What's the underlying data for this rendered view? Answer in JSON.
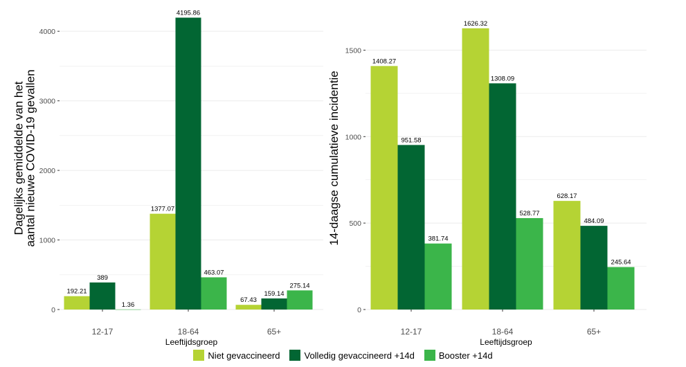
{
  "colors": {
    "series": [
      "#b5d334",
      "#026633",
      "#3bb54a"
    ],
    "grid": "#ebebeb",
    "text": "#000000",
    "tick_text": "#4d4d4d"
  },
  "legend": {
    "items": [
      "Niet gevaccineerd",
      "Volledig gevaccineerd +14d",
      "Booster +14d"
    ]
  },
  "chart_data": [
    {
      "type": "bar",
      "title": "",
      "xlabel": "Leeftijdsgroep",
      "ylabel": "Dagelijks gemiddelde van het aantal nieuwe COVID-19 gevallen",
      "ylabel_lines": [
        "Dagelijks gemiddelde van het",
        "aantal nieuwe COVID-19 gevallen"
      ],
      "categories": [
        "12-17",
        "18-64",
        "65+"
      ],
      "ylim": [
        0,
        4350
      ],
      "yticks": [
        0,
        1000,
        2000,
        3000,
        4000
      ],
      "grid": true,
      "legend": "bottom",
      "series": [
        {
          "name": "Niet gevaccineerd",
          "values": [
            192.21,
            1377.07,
            67.43
          ],
          "labels": [
            "192.21",
            "1377.07",
            "67.43"
          ]
        },
        {
          "name": "Volledig gevaccineerd +14d",
          "values": [
            389,
            4195.86,
            159.14
          ],
          "labels": [
            "389",
            "4195.86",
            "159.14"
          ]
        },
        {
          "name": "Booster +14d",
          "values": [
            1.36,
            463.07,
            275.14
          ],
          "labels": [
            "1.36",
            "463.07",
            "275.14"
          ]
        }
      ]
    },
    {
      "type": "bar",
      "title": "",
      "xlabel": "Leeftijdsgroep",
      "ylabel": "14-daagse cumulatieve incidentie",
      "ylabel_lines": [
        "14-daagse cumulatieve incidentie"
      ],
      "categories": [
        "12-17",
        "18-64",
        "65+"
      ],
      "ylim": [
        0,
        1750
      ],
      "yticks": [
        0,
        500,
        1000,
        1500
      ],
      "grid": true,
      "legend": "bottom",
      "series": [
        {
          "name": "Niet gevaccineerd",
          "values": [
            1408.27,
            1626.32,
            628.17
          ],
          "labels": [
            "1408.27",
            "1626.32",
            "628.17"
          ]
        },
        {
          "name": "Volledig gevaccineerd +14d",
          "values": [
            951.58,
            1308.09,
            484.09
          ],
          "labels": [
            "951.58",
            "1308.09",
            "484.09"
          ]
        },
        {
          "name": "Booster +14d",
          "values": [
            381.74,
            528.77,
            245.64
          ],
          "labels": [
            "381.74",
            "528.77",
            "245.64"
          ]
        }
      ]
    }
  ]
}
